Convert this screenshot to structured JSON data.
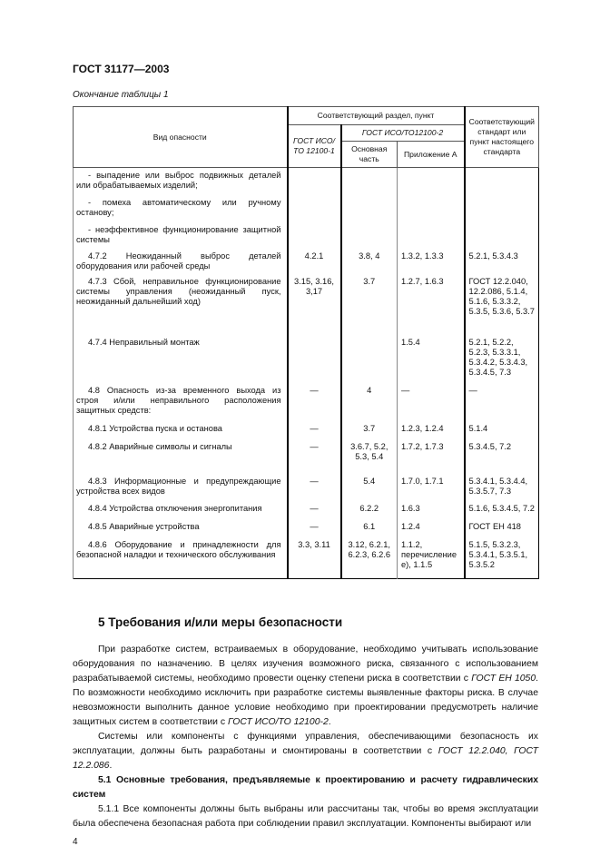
{
  "header": "ГОСТ 31177—2003",
  "caption": "Окончание таблицы 1",
  "table": {
    "head": {
      "hazard": "Вид опасности",
      "section": "Соответствующий раздел, пункт",
      "gost1": "ГОСТ ИСО/ТО 12100-1",
      "gost2": "ГОСТ ИСО/ТО12100-2",
      "main": "Основная часть",
      "annex": "Приложение А",
      "standard": "Соответствующий стандарт или пункт настоящего стандарта"
    },
    "rows": [
      {
        "hazard": "- выпадение или выброс подвижных деталей или обрабатываемых изделий;",
        "c1": "",
        "c2": "",
        "c3": "",
        "c4": "",
        "h": 30
      },
      {
        "hazard": "- помеха автоматическому или ручному останову;",
        "c1": "",
        "c2": "",
        "c3": "",
        "c4": "",
        "h": 30
      },
      {
        "hazard": "- неэффективное функционирование защитной системы",
        "c1": "",
        "c2": "",
        "c3": "",
        "c4": "",
        "h": 29
      },
      {
        "hazard": "4.7.2 Неожиданный выброс деталей оборудования или рабочей среды",
        "c1": "4.2.1",
        "c2": "3.8, 4",
        "c3": "1.3.2, 1.3.3",
        "c4": "5.2.1, 5.3.4.3",
        "h": 28
      },
      {
        "hazard": "4.7.3 Сбой, неправильное функционирование системы управления (неожиданный пуск, неожиданный дальнейший ход)",
        "c1": "3.15, 3.16, 3,17",
        "c2": "3.7",
        "c3": "1.2.7, 1.6.3",
        "c4": "ГОСТ 12.2.040, 12.2.086, 5.1.4, 5.1.6, 5.3.3.2, 5.3.5, 5.3.6, 5.3.7",
        "h": 67
      },
      {
        "hazard": "4.7.4 Неправильный монтаж",
        "c1": "",
        "c2": "",
        "c3": "1.5.4",
        "c4": "5.2.1, 5.2.2, 5.2.3, 5.3.3.1, 5.3.4.2, 5.3.4.3, 5.3.4.5, 7.3",
        "h": 53
      },
      {
        "hazard": "4.8 Опасность из-за временного выхода из строя и/или неправильного расположения защитных средств:",
        "c1": "—",
        "c2": "4",
        "c3": "—",
        "c4": "—",
        "h": 42
      },
      {
        "hazard": "4.8.1 Устройства пуска и останова",
        "c1": "—",
        "c2": "3.7",
        "c3": "1.2.3, 1.2.4",
        "c4": "5.1.4",
        "h": 20
      },
      {
        "hazard": "4.8.2 Аварийные символы и сигналы",
        "c1": "—",
        "c2": "3.6.7, 5.2, 5.3, 5.4",
        "c3": "1.7.2, 1.7.3",
        "c4": "5.3.4.5, 7.2",
        "h": 38
      },
      {
        "hazard": "4.8.3 Информационные и предупреждающие устройства всех видов",
        "c1": "—",
        "c2": "5.4",
        "c3": "1.7.0, 1.7.1",
        "c4": "5.3.4.1, 5.3.4.4, 5.3.5.7, 7.3",
        "h": 30
      },
      {
        "hazard": "4.8.4 Устройства отключения энергопитания",
        "c1": "—",
        "c2": "6.2.2",
        "c3": "1.6.3",
        "c4": "5.1.6, 5.3.4.5, 7.2",
        "h": 20
      },
      {
        "hazard": "4.8.5 Аварийные устройства",
        "c1": "—",
        "c2": "6.1",
        "c3": "1.2.4",
        "c4": "ГОСТ ЕН 418",
        "h": 20
      },
      {
        "hazard": "4.8.6 Оборудование и принадлежности для безопасной наладки и технического обслуживания",
        "c1": "3.3, 3.11",
        "c2": "3.12, 6.2.1, 6.2.3, 6.2.6",
        "c3": "1.1.2, перечисление е), 1.1.5",
        "c4": "5.1.5, 5.3.2.3, 5.3.4.1, 5.3.5.1, 5.3.5.2",
        "h": 46
      }
    ]
  },
  "section5": {
    "title": "5 Требования и/или меры безопасности",
    "p1a": "При разработке систем, встраиваемых в оборудование, необходимо учитывать использование оборудования по назначению. В целях изучения возможного риска, связанного с использованием разрабатываемой системы, необходимо провести оценку степени риска в соответствии с ",
    "p1ref1": "ГОСТ ЕН 1050",
    "p1b": ". По возможности необходимо исключить при разработке системы выявленные факторы риска. В случае невозможности выполнить данное условие необходимо при проектировании предусмотреть наличие защитных систем в соответствии с ",
    "p1ref2": "ГОСТ ИСО/ТО 12100-2",
    "p1c": ".",
    "p2a": "Системы или компоненты с функциями управления, обеспечивающими безопасность их эксплуатации, должны быть разработаны и смонтированы в соответствии с ",
    "p2ref": "ГОСТ 12.2.040, ГОСТ 12.2.086",
    "p2b": ".",
    "s51": "5.1 Основные требования, предъявляемые к проектированию и расчету гидравлических систем",
    "p511": "5.1.1 Все компоненты должны быть выбраны или рассчитаны так, чтобы во время эксплуатации была обеспечена безопасная работа при соблюдении правил эксплуатации. Компоненты выбирают или"
  },
  "page_number": "4"
}
